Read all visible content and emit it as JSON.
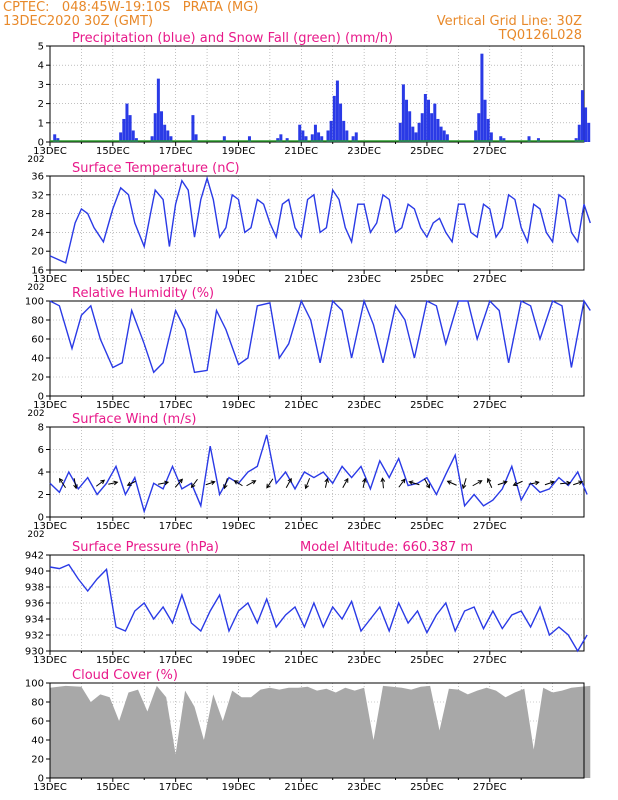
{
  "header": {
    "line1": "CPTEC:   048:45W-19:10S   PRATA (MG)",
    "line2": "13DEC2020 30Z (GMT)",
    "right1": "Vertical Grid Line: 30Z",
    "right2": "TQ0126L028"
  },
  "colors": {
    "series": "#2a3ae6",
    "snow": "#2a9a2a",
    "title": "#e8198a",
    "header": "#e8892a",
    "cloud": "#a8a8a8"
  },
  "chart_data": [
    {
      "type": "bar",
      "title": "Precipitation (blue) and Snow Fall (green) (mm/h)",
      "ylim": [
        0,
        5
      ],
      "yticks": [
        "0",
        "1",
        "2",
        "3",
        "4",
        "5"
      ],
      "xticks": [
        "13DEC",
        "15DEC",
        "17DEC",
        "19DEC",
        "21DEC",
        "23DEC",
        "25DEC",
        "27DEC"
      ],
      "cutoff": "202",
      "precip_events": [
        [
          0.15,
          0.4
        ],
        [
          0.25,
          0.2
        ],
        [
          2.25,
          0.5
        ],
        [
          2.35,
          1.2
        ],
        [
          2.45,
          2.0
        ],
        [
          2.55,
          1.4
        ],
        [
          2.65,
          0.6
        ],
        [
          2.75,
          0.2
        ],
        [
          3.25,
          0.3
        ],
        [
          3.35,
          1.5
        ],
        [
          3.45,
          3.3
        ],
        [
          3.55,
          1.6
        ],
        [
          3.65,
          0.9
        ],
        [
          3.75,
          0.6
        ],
        [
          3.85,
          0.3
        ],
        [
          4.55,
          1.4
        ],
        [
          4.65,
          0.4
        ],
        [
          5.55,
          0.3
        ],
        [
          6.35,
          0.3
        ],
        [
          7.25,
          0.2
        ],
        [
          7.35,
          0.4
        ],
        [
          7.55,
          0.2
        ],
        [
          7.95,
          0.9
        ],
        [
          8.05,
          0.6
        ],
        [
          8.15,
          0.3
        ],
        [
          8.35,
          0.4
        ],
        [
          8.45,
          0.9
        ],
        [
          8.55,
          0.5
        ],
        [
          8.65,
          0.3
        ],
        [
          8.85,
          0.6
        ],
        [
          8.95,
          1.1
        ],
        [
          9.05,
          2.4
        ],
        [
          9.15,
          3.2
        ],
        [
          9.25,
          2.0
        ],
        [
          9.35,
          1.1
        ],
        [
          9.45,
          0.6
        ],
        [
          9.65,
          0.3
        ],
        [
          9.75,
          0.5
        ],
        [
          11.15,
          1.0
        ],
        [
          11.25,
          3.0
        ],
        [
          11.35,
          2.2
        ],
        [
          11.45,
          1.6
        ],
        [
          11.55,
          0.8
        ],
        [
          11.65,
          0.5
        ],
        [
          11.75,
          1.0
        ],
        [
          11.85,
          1.5
        ],
        [
          11.95,
          2.5
        ],
        [
          12.05,
          2.2
        ],
        [
          12.15,
          1.5
        ],
        [
          12.25,
          2.0
        ],
        [
          12.35,
          1.2
        ],
        [
          12.45,
          0.8
        ],
        [
          12.55,
          0.6
        ],
        [
          12.65,
          0.4
        ],
        [
          13.55,
          0.6
        ],
        [
          13.65,
          1.5
        ],
        [
          13.75,
          4.6
        ],
        [
          13.85,
          2.2
        ],
        [
          13.95,
          1.2
        ],
        [
          14.05,
          0.5
        ],
        [
          14.35,
          0.3
        ],
        [
          14.45,
          0.2
        ],
        [
          15.25,
          0.3
        ],
        [
          15.55,
          0.2
        ],
        [
          16.75,
          0.2
        ],
        [
          16.85,
          0.9
        ],
        [
          16.95,
          2.7
        ],
        [
          17.05,
          1.8
        ],
        [
          17.15,
          1.0
        ]
      ],
      "snow_events": []
    },
    {
      "type": "line",
      "title": "Surface Temperature (nC)",
      "ylim": [
        16,
        36
      ],
      "yticks": [
        "16",
        "20",
        "24",
        "28",
        "32",
        "36"
      ],
      "xticks": [
        "13DEC",
        "15DEC",
        "17DEC",
        "19DEC",
        "21DEC",
        "23DEC",
        "25DEC",
        "27DEC"
      ],
      "cutoff": "202",
      "x": [
        0,
        0.5,
        0.8,
        1.0,
        1.2,
        1.4,
        1.7,
        2.0,
        2.25,
        2.5,
        2.7,
        3.0,
        3.2,
        3.35,
        3.6,
        3.8,
        4.0,
        4.2,
        4.4,
        4.6,
        4.8,
        5.0,
        5.2,
        5.4,
        5.6,
        5.8,
        6.0,
        6.2,
        6.4,
        6.6,
        6.8,
        7.0,
        7.2,
        7.4,
        7.6,
        7.8,
        8.0,
        8.2,
        8.4,
        8.6,
        8.8,
        9.0,
        9.2,
        9.4,
        9.6,
        9.8,
        10.0,
        10.2,
        10.4,
        10.6,
        10.8,
        11.0,
        11.2,
        11.4,
        11.6,
        11.8,
        12.0,
        12.2,
        12.4,
        12.6,
        12.8,
        13.0,
        13.2,
        13.4,
        13.6,
        13.8,
        14.0,
        14.2,
        14.4,
        14.6,
        14.8,
        15.0,
        15.2,
        15.4,
        15.6,
        15.8,
        16.0,
        16.2,
        16.4,
        16.6,
        16.8,
        17.0,
        17.2
      ],
      "values": [
        19,
        17.5,
        26,
        29,
        28,
        25,
        22,
        29,
        33.5,
        32,
        26,
        21,
        28,
        33,
        31,
        21,
        30,
        35,
        33,
        23,
        31,
        35.5,
        31,
        23,
        25,
        32,
        31,
        24,
        25,
        31,
        30,
        26,
        23,
        30,
        31,
        25,
        23,
        31,
        32,
        24,
        25,
        33,
        31,
        25,
        22,
        30,
        30,
        24,
        26,
        32,
        31,
        24,
        25,
        30,
        29,
        25,
        23,
        26,
        27,
        24,
        22,
        30,
        30,
        24,
        23,
        30,
        29,
        23,
        25,
        32,
        31,
        25,
        22,
        30,
        29,
        24,
        22,
        32,
        31,
        24,
        22,
        30,
        26
      ]
    },
    {
      "type": "line",
      "title": "Relative Humidity (%)",
      "ylim": [
        0,
        100
      ],
      "yticks": [
        "0",
        "20",
        "40",
        "60",
        "80",
        "100"
      ],
      "xticks": [
        "13DEC",
        "15DEC",
        "17DEC",
        "19DEC",
        "21DEC",
        "23DEC",
        "25DEC",
        "27DEC"
      ],
      "cutoff": "202",
      "x": [
        0,
        0.3,
        0.7,
        1.0,
        1.3,
        1.6,
        2.0,
        2.3,
        2.6,
        3.0,
        3.3,
        3.6,
        4.0,
        4.3,
        4.6,
        5.0,
        5.3,
        5.6,
        6.0,
        6.3,
        6.6,
        7.0,
        7.3,
        7.6,
        8.0,
        8.3,
        8.6,
        9.0,
        9.3,
        9.6,
        10.0,
        10.3,
        10.6,
        11.0,
        11.3,
        11.6,
        12.0,
        12.3,
        12.6,
        13.0,
        13.3,
        13.6,
        14.0,
        14.3,
        14.6,
        15.0,
        15.3,
        15.6,
        16.0,
        16.3,
        16.6,
        17.0,
        17.2
      ],
      "values": [
        100,
        95,
        50,
        85,
        95,
        60,
        30,
        35,
        90,
        55,
        25,
        35,
        90,
        70,
        25,
        27,
        90,
        70,
        33,
        40,
        95,
        98,
        40,
        55,
        100,
        80,
        35,
        100,
        90,
        40,
        100,
        75,
        35,
        95,
        80,
        40,
        100,
        95,
        55,
        100,
        100,
        60,
        100,
        90,
        35,
        100,
        95,
        60,
        100,
        95,
        30,
        100,
        90
      ]
    },
    {
      "type": "line",
      "title": "Surface Wind (m/s)",
      "ylim": [
        0,
        8
      ],
      "yticks": [
        "0",
        "2",
        "4",
        "6",
        "8"
      ],
      "xticks": [
        "13DEC",
        "15DEC",
        "17DEC",
        "19DEC",
        "21DEC",
        "23DEC",
        "25DEC",
        "27DEC"
      ],
      "cutoff": "202",
      "x": [
        0,
        0.3,
        0.6,
        0.9,
        1.2,
        1.5,
        1.8,
        2.1,
        2.4,
        2.7,
        3.0,
        3.3,
        3.6,
        3.9,
        4.2,
        4.5,
        4.8,
        5.1,
        5.4,
        5.7,
        6.0,
        6.3,
        6.6,
        6.9,
        7.2,
        7.5,
        7.8,
        8.1,
        8.4,
        8.7,
        9.0,
        9.3,
        9.6,
        9.9,
        10.2,
        10.5,
        10.8,
        11.1,
        11.4,
        11.7,
        12.0,
        12.3,
        12.6,
        12.9,
        13.2,
        13.5,
        13.8,
        14.1,
        14.4,
        14.7,
        15.0,
        15.3,
        15.6,
        15.9,
        16.2,
        16.5,
        16.8,
        17.1
      ],
      "values": [
        3,
        2.2,
        4,
        2.5,
        3.5,
        2,
        3,
        4.5,
        2,
        3.5,
        0.5,
        3,
        2.5,
        4.5,
        2.5,
        3,
        1,
        6.3,
        2,
        3.5,
        3,
        4,
        4.5,
        7.3,
        3,
        4,
        2.5,
        4,
        3.5,
        4,
        3,
        4.5,
        3.5,
        4.5,
        2.5,
        5,
        3.5,
        5.2,
        2.8,
        3,
        3.5,
        2,
        3.8,
        5.5,
        1,
        2,
        1,
        1.5,
        2.5,
        4.5,
        1.5,
        3,
        2.2,
        2.5,
        3.5,
        2.8,
        4,
        2
      ]
    }
  ],
  "wind_arrows_note": "direction vectors shown along the wind series",
  "wind_arrows": [
    [
      0.4,
      -0.6,
      0.9
    ],
    [
      0.8,
      0.2,
      -1
    ],
    [
      1.6,
      0.8,
      0.6
    ],
    [
      2.0,
      0.9,
      0.2
    ],
    [
      2.6,
      -0.8,
      -0.4
    ],
    [
      3.6,
      1,
      0.2
    ],
    [
      4.1,
      0.7,
      0.8
    ],
    [
      4.6,
      -0.6,
      -0.8
    ],
    [
      5.1,
      0.9,
      0.3
    ],
    [
      5.6,
      -0.3,
      -1
    ],
    [
      6.0,
      -0.8,
      0.5
    ],
    [
      6.4,
      0.9,
      0.5
    ],
    [
      7.0,
      -0.6,
      -0.9
    ],
    [
      7.6,
      0.5,
      0.9
    ],
    [
      8.2,
      -0.4,
      -1
    ],
    [
      8.8,
      0.2,
      0.9
    ],
    [
      9.4,
      0.5,
      0.9
    ],
    [
      10.0,
      0.2,
      0.9
    ],
    [
      10.6,
      -0.1,
      1
    ],
    [
      11.2,
      0.6,
      0.8
    ],
    [
      11.6,
      -1,
      0.3
    ],
    [
      12.0,
      0.5,
      -0.9
    ],
    [
      12.8,
      -0.9,
      0.4
    ],
    [
      13.2,
      -0.3,
      -1
    ],
    [
      13.6,
      0.9,
      0.5
    ],
    [
      14.0,
      -0.4,
      0.9
    ],
    [
      14.4,
      0.9,
      0.3
    ],
    [
      14.9,
      -0.9,
      -0.4
    ],
    [
      15.4,
      1,
      0.2
    ],
    [
      15.9,
      0.9,
      0.3
    ],
    [
      16.4,
      1,
      0.1
    ],
    [
      16.8,
      0.9,
      0.3
    ]
  ],
  "pressure": {
    "type": "line",
    "title": "Surface Pressure (hPa)",
    "altitude_label": "Model Altitude: 660.387 m",
    "ylim": [
      930,
      942
    ],
    "yticks": [
      "930",
      "932",
      "934",
      "936",
      "938",
      "940",
      "942"
    ],
    "xticks": [
      "13DEC",
      "15DEC",
      "17DEC",
      "19DEC",
      "21DEC",
      "23DEC",
      "25DEC",
      "27DEC"
    ],
    "x": [
      0,
      0.3,
      0.6,
      0.9,
      1.2,
      1.5,
      1.8,
      2.1,
      2.4,
      2.7,
      3.0,
      3.3,
      3.6,
      3.9,
      4.2,
      4.5,
      4.8,
      5.1,
      5.4,
      5.7,
      6.0,
      6.3,
      6.6,
      6.9,
      7.2,
      7.5,
      7.8,
      8.1,
      8.4,
      8.7,
      9.0,
      9.3,
      9.6,
      9.9,
      10.2,
      10.5,
      10.8,
      11.1,
      11.4,
      11.7,
      12.0,
      12.3,
      12.6,
      12.9,
      13.2,
      13.5,
      13.8,
      14.1,
      14.4,
      14.7,
      15.0,
      15.3,
      15.6,
      15.9,
      16.2,
      16.5,
      16.8,
      17.1
    ],
    "values": [
      940.5,
      940.3,
      940.8,
      939,
      937.5,
      939,
      940.2,
      933,
      932.5,
      935,
      936,
      934,
      935.5,
      933.5,
      937,
      933.5,
      932.5,
      935,
      937,
      932.5,
      935,
      936,
      933.5,
      936.5,
      933,
      934.5,
      935.5,
      933,
      936,
      933,
      935.5,
      934,
      936.2,
      932.5,
      934,
      935.5,
      932.5,
      936,
      933.5,
      935,
      932.3,
      934.5,
      936,
      932.5,
      935,
      935.5,
      932.8,
      935,
      932.8,
      934.5,
      935,
      933,
      935.5,
      932,
      933,
      932,
      930,
      932
    ]
  },
  "cloud": {
    "type": "area",
    "title": "Cloud Cover (%)",
    "ylim": [
      0,
      100
    ],
    "yticks": [
      "0",
      "20",
      "40",
      "60",
      "80",
      "100"
    ],
    "xticks": [
      "13DEC",
      "15DEC",
      "17DEC",
      "19DEC",
      "21DEC",
      "23DEC",
      "25DEC",
      "27DEC"
    ],
    "x": [
      0,
      0.5,
      1.0,
      1.3,
      1.6,
      1.9,
      2.2,
      2.5,
      2.8,
      3.1,
      3.4,
      3.7,
      4.0,
      4.3,
      4.6,
      4.9,
      5.2,
      5.5,
      5.8,
      6.1,
      6.4,
      6.7,
      7.0,
      7.3,
      7.6,
      7.9,
      8.2,
      8.5,
      8.8,
      9.1,
      9.4,
      9.7,
      10.0,
      10.3,
      10.6,
      10.9,
      11.2,
      11.5,
      11.8,
      12.1,
      12.4,
      12.7,
      13.0,
      13.3,
      13.6,
      13.9,
      14.2,
      14.5,
      14.8,
      15.1,
      15.4,
      15.7,
      16.0,
      16.3,
      16.6,
      16.9,
      17.2
    ],
    "values": [
      95,
      97,
      96,
      80,
      88,
      85,
      60,
      90,
      93,
      70,
      97,
      85,
      25,
      92,
      75,
      40,
      88,
      60,
      92,
      85,
      85,
      93,
      95,
      93,
      95,
      95,
      96,
      92,
      94,
      90,
      95,
      92,
      95,
      40,
      97,
      96,
      95,
      93,
      96,
      97,
      50,
      94,
      93,
      88,
      92,
      95,
      92,
      85,
      90,
      94,
      30,
      95,
      90,
      92,
      95,
      96,
      97
    ]
  }
}
